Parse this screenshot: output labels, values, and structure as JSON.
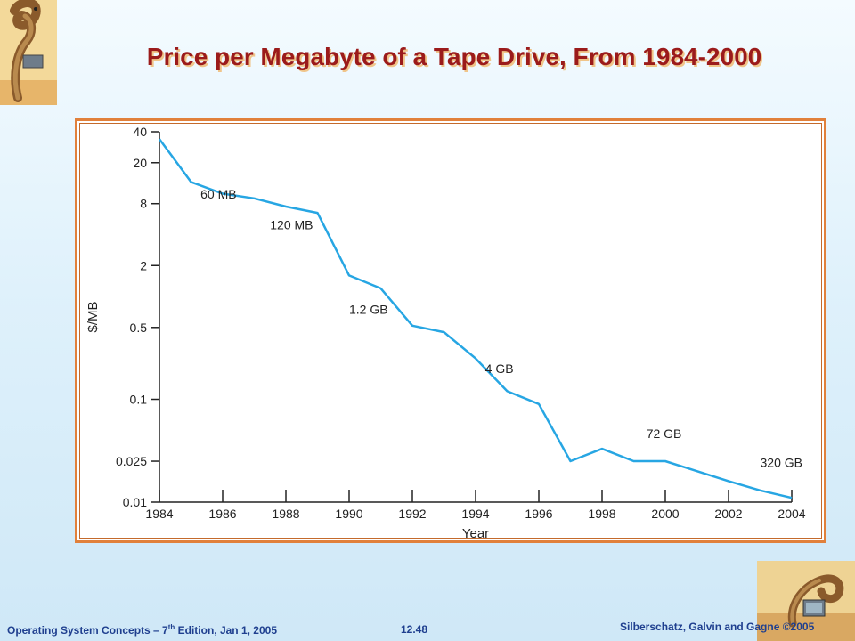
{
  "title": "Price per Megabyte of a Tape Drive, From 1984-2000",
  "footer": {
    "left_prefix": "Operating System Concepts – 7",
    "left_sup": "th",
    "left_suffix": " Edition, Jan 1, 2005",
    "page_number": "12.48",
    "right": "Silberschatz, Galvin and Gagne ©2005"
  },
  "colors": {
    "title": "#9b1b1b",
    "line": "#27a6e3",
    "frame": "#e1803b"
  },
  "chart_data": {
    "type": "line",
    "title": "",
    "xlabel": "Year",
    "ylabel": "$/MB",
    "yscale": "log",
    "xlim": [
      1984,
      2004
    ],
    "ylim": [
      0.01,
      40
    ],
    "x_ticks": [
      1984,
      1986,
      1988,
      1990,
      1992,
      1994,
      1996,
      1998,
      2000,
      2002,
      2004
    ],
    "x_tick_labels": [
      "1984",
      "1986",
      "1988",
      "1990",
      "1992",
      "1994",
      "1996",
      "1998",
      "2000",
      "2002",
      "2004"
    ],
    "y_ticks": [
      0.01,
      0.025,
      0.1,
      0.5,
      2,
      8,
      20,
      40
    ],
    "y_tick_labels": [
      "0.01",
      "0.025",
      "0.1",
      "0.5",
      "2",
      "8",
      "20",
      "40"
    ],
    "grid": false,
    "series": [
      {
        "x": [
          1984,
          1985,
          1986,
          1987,
          1988,
          1989,
          1990,
          1991,
          1992,
          1993,
          1994,
          1995,
          1996,
          1997,
          1998,
          1999,
          2000,
          2001,
          2002,
          2003,
          2004
        ],
        "values": [
          34,
          13,
          10,
          9,
          7.5,
          6.5,
          1.6,
          1.2,
          0.52,
          0.45,
          0.25,
          0.12,
          0.09,
          0.025,
          0.033,
          0.025,
          0.025,
          0.02,
          0.016,
          0.013,
          0.011
        ]
      }
    ],
    "annotations": [
      {
        "text": "60 MB",
        "x": 1985.3,
        "y": 9
      },
      {
        "text": "120 MB",
        "x": 1987.5,
        "y": 4.5
      },
      {
        "text": "1.2 GB",
        "x": 1990.0,
        "y": 0.68
      },
      {
        "text": "4 GB",
        "x": 1994.3,
        "y": 0.18
      },
      {
        "text": "72 GB",
        "x": 1999.4,
        "y": 0.042
      },
      {
        "text": "320 GB",
        "x": 2003.0,
        "y": 0.022
      }
    ]
  }
}
